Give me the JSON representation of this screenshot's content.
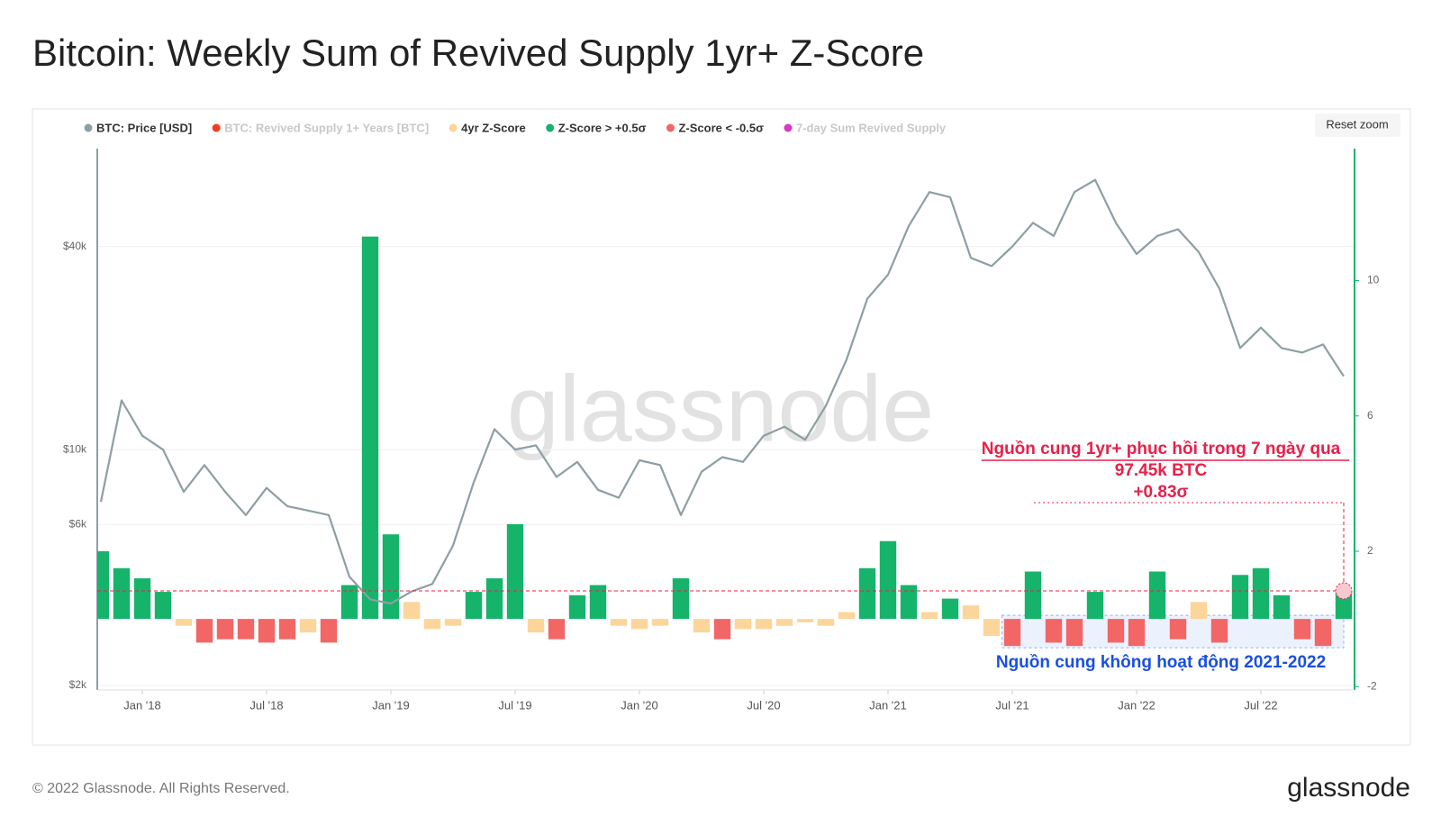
{
  "page": {
    "reset_zoom": "Reset zoom",
    "watermark": "glassnode",
    "copyright": "© 2022 Glassnode. All Rights Reserved.",
    "logo": "glassnode"
  },
  "chart_data": {
    "type": "line",
    "title": "Bitcoin: Weekly Sum of Revived Supply 1yr+ Z-Score",
    "categories": [
      null,
      null,
      "Jan '18",
      null,
      null,
      null,
      null,
      null,
      "Jul '18",
      null,
      null,
      null,
      null,
      null,
      "Jan '19",
      null,
      null,
      null,
      null,
      null,
      "Jul '19",
      null,
      null,
      null,
      null,
      null,
      "Jan '20",
      null,
      null,
      null,
      null,
      null,
      "Jul '20",
      null,
      null,
      null,
      null,
      null,
      "Jan '21",
      null,
      null,
      null,
      null,
      null,
      "Jul '21",
      null,
      null,
      null,
      null,
      null,
      "Jan '22",
      null,
      null,
      null,
      null,
      null,
      "Jul '22",
      null,
      null,
      null,
      null
    ],
    "series": [
      {
        "name": "BTC: Price [USD]",
        "color": "#8e9ea3",
        "type": "line",
        "axis": "y",
        "values": [
          7000,
          14000,
          11000,
          10000,
          7500,
          9000,
          7500,
          6400,
          7700,
          6800,
          6600,
          6400,
          4200,
          3600,
          3500,
          3800,
          4000,
          5200,
          8000,
          11500,
          10000,
          10300,
          8300,
          9200,
          7600,
          7200,
          9300,
          9000,
          6400,
          8600,
          9500,
          9200,
          11000,
          11700,
          10700,
          13500,
          18500,
          28000,
          33000,
          46000,
          58000,
          56000,
          37000,
          35000,
          40000,
          47000,
          43000,
          58000,
          63000,
          47000,
          38000,
          43000,
          45000,
          38500,
          30000,
          20000,
          23000,
          20000,
          19400,
          20500,
          16500
        ]
      },
      {
        "name": "BTC: Revived Supply 1+ Years [BTC]",
        "color": "#f23c1f",
        "visible": false
      },
      {
        "name": "4yr Z-Score",
        "color": "#fbd59a",
        "type": "bar",
        "axis": "y2",
        "values": [
          null,
          null,
          null,
          null,
          -0.2,
          null,
          null,
          null,
          null,
          null,
          -0.4,
          null,
          null,
          null,
          null,
          0.5,
          -0.3,
          -0.2,
          null,
          null,
          null,
          -0.4,
          null,
          null,
          null,
          -0.2,
          -0.3,
          -0.2,
          null,
          -0.4,
          null,
          -0.3,
          -0.3,
          -0.2,
          -0.1,
          -0.2,
          0.2,
          null,
          null,
          null,
          0.2,
          null,
          0.4,
          -0.5,
          null,
          null,
          null,
          null,
          null,
          null,
          null,
          null,
          null,
          0.5,
          null,
          null,
          null,
          null,
          null,
          null,
          null
        ]
      },
      {
        "name": "Z-Score > +0.5σ",
        "color": "#16b36b",
        "type": "bar",
        "axis": "y2",
        "values": [
          2.0,
          1.5,
          1.2,
          0.8,
          null,
          null,
          null,
          null,
          null,
          null,
          null,
          null,
          1.0,
          11.3,
          2.5,
          null,
          null,
          null,
          0.8,
          1.2,
          2.8,
          null,
          null,
          0.7,
          1.0,
          null,
          null,
          null,
          1.2,
          null,
          null,
          null,
          null,
          null,
          null,
          null,
          null,
          1.5,
          2.3,
          1.0,
          null,
          0.6,
          null,
          null,
          null,
          1.4,
          null,
          null,
          0.8,
          null,
          null,
          1.4,
          null,
          null,
          null,
          1.3,
          1.5,
          0.7,
          null,
          null,
          0.83
        ]
      },
      {
        "name": "Z-Score < -0.5σ",
        "color": "#f26666",
        "type": "bar",
        "axis": "y2",
        "values": [
          null,
          null,
          null,
          null,
          null,
          -0.7,
          -0.6,
          -0.6,
          -0.7,
          -0.6,
          null,
          -0.7,
          null,
          null,
          null,
          null,
          null,
          null,
          null,
          null,
          null,
          null,
          -0.6,
          null,
          null,
          null,
          null,
          null,
          null,
          null,
          -0.6,
          null,
          null,
          null,
          null,
          null,
          null,
          null,
          null,
          null,
          null,
          null,
          null,
          null,
          -0.8,
          null,
          -0.7,
          -0.8,
          null,
          -0.7,
          -0.8,
          null,
          -0.6,
          null,
          -0.7,
          null,
          null,
          null,
          -0.6,
          -0.8,
          null
        ]
      },
      {
        "name": "7-day Sum Revived Supply",
        "color": "#d63ac3",
        "visible": false
      }
    ],
    "ylim": [
      1940,
      78000
    ],
    "log_scale": true,
    "yticks": [
      {
        "value": 2000,
        "label": "$2k"
      },
      {
        "value": 6000,
        "label": "$6k"
      },
      {
        "value": 10000,
        "label": "$10k"
      },
      {
        "value": 40000,
        "label": "$40k"
      }
    ],
    "y2lim": [
      -2.1,
      13.9
    ],
    "y2ticks": [
      -2,
      2,
      6,
      10
    ],
    "grid": true,
    "legend": "top-left",
    "annotations": [
      "Nguồn cung 1yr+ phục hồi trong 7 ngày qua",
      "97.45k BTC",
      "+0.83σ",
      "Nguồn cung không hoạt động 2021-2022"
    ]
  }
}
